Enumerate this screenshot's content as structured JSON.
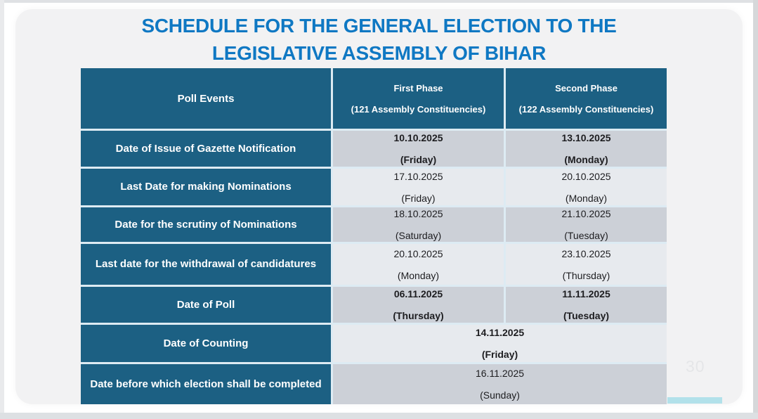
{
  "title": {
    "line1": "SCHEDULE FOR THE GENERAL ELECTION TO THE",
    "line2": "LEGISLATIVE ASSEMBLY OF BIHAR"
  },
  "table": {
    "header": {
      "poll_events": "Poll Events",
      "phase1_line1": "First Phase",
      "phase1_line2": "(121 Assembly Constituencies)",
      "phase2_line1": "Second Phase",
      "phase2_line2": "(122 Assembly Constituencies)"
    },
    "rows": [
      {
        "event": "Date of Issue of Gazette Notification",
        "phase1": {
          "date": "10.10.2025",
          "day": "(Friday)"
        },
        "phase2": {
          "date": "13.10.2025",
          "day": "(Monday)"
        }
      },
      {
        "event": "Last Date for making Nominations",
        "phase1": {
          "date": "17.10.2025",
          "day": "(Friday)"
        },
        "phase2": {
          "date": "20.10.2025",
          "day": "(Monday)"
        }
      },
      {
        "event": "Date for the scrutiny of Nominations",
        "phase1": {
          "date": "18.10.2025",
          "day": "(Saturday)"
        },
        "phase2": {
          "date": "21.10.2025",
          "day": "(Tuesday)"
        }
      },
      {
        "event": "Last date for the withdrawal of candidatures",
        "phase1": {
          "date": "20.10.2025",
          "day": "(Monday)"
        },
        "phase2": {
          "date": "23.10.2025",
          "day": "(Thursday)"
        }
      },
      {
        "event": "Date of Poll",
        "phase1": {
          "date": "06.11.2025",
          "day": "(Thursday)"
        },
        "phase2": {
          "date": "11.11.2025",
          "day": "(Tuesday)"
        }
      },
      {
        "event": "Date of Counting",
        "merged": {
          "date": "14.11.2025",
          "day": "(Friday)"
        }
      },
      {
        "event": "Date before which election shall be completed",
        "merged": {
          "date": "16.11.2025",
          "day": "(Sunday)"
        }
      }
    ]
  },
  "page": {
    "number": "30"
  },
  "colors": {
    "title_blue": "#0f78c3",
    "table_teal": "#1c6083",
    "row_dark_gray": "#ccd0d7",
    "row_light_gray": "#e7eaee",
    "accent_bar_cyan": "#b2e1ea",
    "slide_background": "#f2f2f3"
  }
}
